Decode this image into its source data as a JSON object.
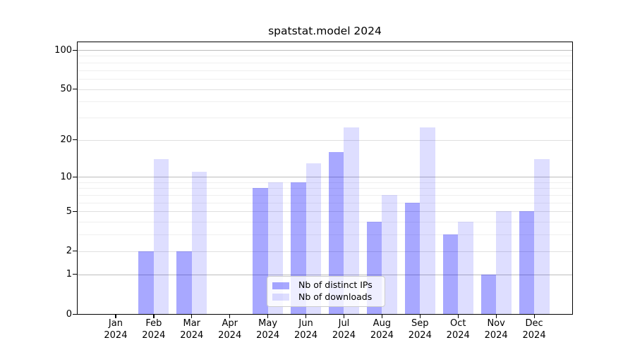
{
  "chart_data": {
    "type": "bar",
    "title": "spatstat.model 2024",
    "categories": [
      "Jan",
      "Feb",
      "Mar",
      "Apr",
      "May",
      "Jun",
      "Jul",
      "Aug",
      "Sep",
      "Oct",
      "Nov",
      "Dec"
    ],
    "x_tick_year": "2024",
    "series": [
      {
        "name": "Nb of distinct IPs",
        "color": "rgba(0,0,255,0.34)",
        "values": [
          0,
          2,
          2,
          0,
          8,
          9,
          16,
          4,
          6,
          3,
          1,
          5
        ]
      },
      {
        "name": "Nb of downloads",
        "color": "rgba(0,0,255,0.13)",
        "values": [
          0,
          14,
          11,
          0,
          9,
          13,
          25,
          7,
          25,
          4,
          5,
          14
        ]
      }
    ],
    "yscale": "log1p",
    "ylim": [
      0,
      100
    ],
    "yticks": [
      0,
      1,
      2,
      5,
      10,
      20,
      50,
      100
    ],
    "minor_gridlines": [
      3,
      4,
      6,
      7,
      8,
      9,
      30,
      40,
      60,
      70,
      80,
      90
    ],
    "grid": true,
    "legend_position": "bottom-center"
  },
  "colors": {
    "bar_distinct_ips": "#a8a8ff",
    "bar_downloads": "#dedeff",
    "gridline_decade": "#bdbdbd",
    "gridline_major": "#e0e0e0",
    "gridline_minor": "#efefef",
    "axis": "#000000",
    "legend_border": "#cccccc",
    "text": "#000000"
  }
}
